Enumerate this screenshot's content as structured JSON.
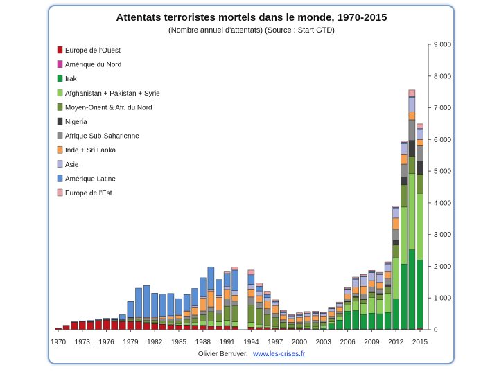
{
  "chart_data": {
    "type": "bar",
    "stacked": true,
    "title": "Attentats terroristes mortels dans le monde, 1970-2015",
    "subtitle": "(Nombre annuel d'attentats) (Source : Start GTD)",
    "credit_author": "Olivier Berruyer,",
    "credit_link": "www.les-crises.fr",
    "categories": [
      "1970",
      "1971",
      "1972",
      "1973",
      "1974",
      "1975",
      "1976",
      "1977",
      "1978",
      "1979",
      "1980",
      "1981",
      "1982",
      "1983",
      "1984",
      "1985",
      "1986",
      "1987",
      "1988",
      "1989",
      "1990",
      "1991",
      "1992",
      "1994",
      "1995",
      "1996",
      "1997",
      "1998",
      "1999",
      "2000",
      "2001",
      "2002",
      "2003",
      "2004",
      "2005",
      "2006",
      "2007",
      "2008",
      "2009",
      "2010",
      "2011",
      "2012",
      "2013",
      "2014",
      "2015"
    ],
    "x_tick_labels": [
      "1970",
      "1973",
      "1976",
      "1979",
      "1982",
      "1985",
      "1988",
      "1991",
      "1994",
      "1997",
      "2000",
      "2003",
      "2006",
      "2009",
      "2012",
      "2015"
    ],
    "y_ticks": [
      "0",
      "1 000",
      "2 000",
      "3 000",
      "4 000",
      "5 000",
      "6 000",
      "7 000",
      "8 000",
      "9 000"
    ],
    "ylim": [
      0,
      9000
    ],
    "y_axis_side": "right",
    "legend_position": "top-left",
    "series": [
      {
        "name": "Europe de l'Ouest",
        "color": "#c0141c",
        "values": [
          40,
          120,
          230,
          250,
          240,
          280,
          300,
          260,
          250,
          250,
          250,
          200,
          180,
          160,
          150,
          140,
          140,
          130,
          130,
          110,
          110,
          120,
          90,
          70,
          60,
          60,
          40,
          40,
          30,
          30,
          20,
          20,
          10,
          10,
          10,
          10,
          10,
          10,
          10,
          10,
          10,
          10,
          10,
          10,
          30
        ]
      },
      {
        "name": "Amérique du Nord",
        "color": "#cc3aa0",
        "values": [
          10,
          20,
          10,
          10,
          10,
          10,
          10,
          10,
          10,
          10,
          10,
          10,
          10,
          10,
          10,
          10,
          10,
          10,
          10,
          10,
          10,
          10,
          10,
          10,
          10,
          10,
          10,
          10,
          10,
          10,
          20,
          10,
          10,
          10,
          10,
          10,
          10,
          10,
          10,
          10,
          10,
          10,
          10,
          10,
          20
        ]
      },
      {
        "name": "Irak",
        "color": "#139a40",
        "values": [
          0,
          0,
          0,
          0,
          0,
          0,
          0,
          0,
          0,
          0,
          0,
          0,
          0,
          0,
          0,
          0,
          0,
          0,
          0,
          0,
          0,
          0,
          0,
          0,
          0,
          0,
          0,
          0,
          0,
          0,
          0,
          0,
          40,
          160,
          280,
          560,
          580,
          450,
          500,
          480,
          520,
          950,
          2050,
          2500,
          2150
        ]
      },
      {
        "name": "Afghanistan + Pakistan + Syrie",
        "color": "#8ccc5a",
        "values": [
          0,
          0,
          0,
          0,
          0,
          0,
          0,
          10,
          10,
          20,
          20,
          20,
          30,
          30,
          40,
          40,
          60,
          80,
          130,
          150,
          130,
          160,
          150,
          150,
          100,
          60,
          40,
          30,
          30,
          40,
          50,
          60,
          60,
          70,
          100,
          200,
          300,
          350,
          500,
          450,
          600,
          1300,
          1800,
          2400,
          2100
        ]
      },
      {
        "name": "Moyen-Orient & Afr. du Nord",
        "color": "#6f8f3a",
        "values": [
          0,
          0,
          0,
          0,
          10,
          20,
          20,
          30,
          30,
          50,
          60,
          60,
          70,
          70,
          80,
          90,
          120,
          150,
          200,
          300,
          250,
          450,
          500,
          550,
          500,
          350,
          300,
          150,
          100,
          100,
          120,
          120,
          100,
          100,
          100,
          100,
          120,
          130,
          150,
          150,
          200,
          400,
          700,
          550,
          600
        ]
      },
      {
        "name": "Nigeria",
        "color": "#3d3d3d",
        "values": [
          0,
          0,
          0,
          0,
          0,
          0,
          0,
          0,
          0,
          0,
          0,
          0,
          0,
          0,
          0,
          0,
          0,
          0,
          0,
          0,
          0,
          0,
          0,
          0,
          0,
          0,
          0,
          0,
          0,
          0,
          0,
          10,
          10,
          10,
          10,
          10,
          20,
          20,
          30,
          40,
          80,
          150,
          250,
          500,
          400
        ]
      },
      {
        "name": "Afrique Sub-Saharienne",
        "color": "#8a8a8a",
        "values": [
          0,
          0,
          0,
          0,
          0,
          0,
          0,
          10,
          20,
          40,
          40,
          50,
          60,
          80,
          60,
          70,
          100,
          90,
          120,
          150,
          120,
          230,
          150,
          250,
          200,
          180,
          120,
          80,
          60,
          60,
          60,
          70,
          50,
          60,
          60,
          80,
          100,
          150,
          150,
          150,
          200,
          350,
          400,
          650,
          500
        ]
      },
      {
        "name": "Inde + Sri Lanka",
        "color": "#f79d4e",
        "values": [
          0,
          0,
          0,
          0,
          0,
          0,
          0,
          0,
          0,
          10,
          20,
          30,
          30,
          50,
          70,
          100,
          150,
          250,
          400,
          500,
          400,
          300,
          180,
          250,
          200,
          250,
          250,
          150,
          120,
          150,
          150,
          150,
          150,
          150,
          150,
          150,
          200,
          250,
          200,
          200,
          200,
          350,
          300,
          250,
          200
        ]
      },
      {
        "name": "Asie",
        "color": "#b0b4dc",
        "values": [
          0,
          0,
          0,
          0,
          0,
          0,
          0,
          0,
          0,
          10,
          10,
          20,
          20,
          20,
          30,
          30,
          30,
          40,
          50,
          60,
          60,
          100,
          150,
          150,
          150,
          100,
          80,
          70,
          60,
          60,
          70,
          70,
          80,
          90,
          100,
          150,
          250,
          300,
          250,
          250,
          250,
          300,
          350,
          450,
          300
        ]
      },
      {
        "name": "Amérique Latine",
        "color": "#5a8fd6",
        "values": [
          0,
          0,
          10,
          20,
          30,
          30,
          30,
          40,
          150,
          500,
          900,
          1000,
          750,
          700,
          700,
          500,
          500,
          550,
          600,
          700,
          500,
          400,
          650,
          300,
          150,
          100,
          50,
          40,
          30,
          30,
          30,
          30,
          20,
          20,
          20,
          20,
          30,
          30,
          30,
          30,
          30,
          40,
          40,
          40,
          40
        ]
      },
      {
        "name": "Europe de l'Est",
        "color": "#e9a3a6",
        "values": [
          0,
          0,
          0,
          0,
          0,
          0,
          0,
          0,
          0,
          0,
          0,
          0,
          0,
          0,
          0,
          0,
          0,
          0,
          0,
          0,
          0,
          50,
          100,
          150,
          100,
          100,
          50,
          40,
          30,
          50,
          50,
          40,
          30,
          30,
          30,
          40,
          40,
          40,
          40,
          40,
          40,
          40,
          40,
          200,
          150
        ]
      }
    ]
  }
}
